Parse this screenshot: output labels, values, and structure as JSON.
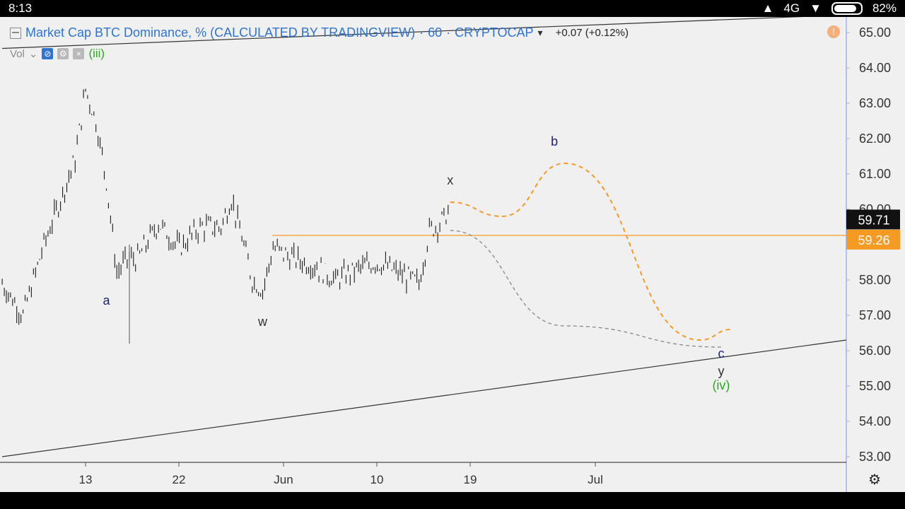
{
  "status_bar": {
    "time": "8:13",
    "network": "4G",
    "battery": "82%"
  },
  "legend": {
    "title": "Market Cap BTC Dominance, % (CALCULATED BY TRADINGVIEW)",
    "interval": "60",
    "source": "CRYPTOCAP",
    "change": "+0.07 (+0.12%)"
  },
  "indicator": {
    "volume_label": "Vol",
    "wave_label": "(iii)"
  },
  "icons": {
    "collapse": "collapse-icon",
    "visibility": "eye-icon",
    "settings": "gear-icon",
    "remove": "close-icon",
    "alert": "alert-icon",
    "chart_settings": "settings-icon"
  },
  "colors": {
    "accent": "#2f74d0",
    "projection_orange": "#f59a23",
    "price_label_bg": "#111111",
    "level_label_bg": "#f59a23",
    "wave_green": "#2eaa22"
  },
  "chart_data": {
    "type": "line",
    "symbol": "CRYPTOCAP",
    "ylim": [
      53.0,
      65.0
    ],
    "y_ticks": [
      "53.00",
      "54.00",
      "55.00",
      "56.00",
      "57.00",
      "58.00",
      "59.00",
      "60.00",
      "61.00",
      "62.00",
      "63.00",
      "64.00",
      "65.00"
    ],
    "x_ticks": [
      "13",
      "22",
      "Jun",
      "10",
      "19",
      "Jul"
    ],
    "grid": false,
    "series": [
      {
        "x": [
          "May 5",
          "May 7",
          "May 9",
          "May 11",
          "May 12",
          "May 13",
          "May 14",
          "May 15",
          "May 16",
          "May 17",
          "May 18",
          "May 20",
          "May 22",
          "May 24",
          "May 26",
          "May 27",
          "May 28",
          "May 29",
          "May 30",
          "May 31",
          "Jun 2",
          "Jun 4",
          "Jun 6",
          "Jun 8",
          "Jun 10",
          "Jun 12",
          "Jun 14",
          "Jun 15",
          "Jun 16",
          "Jun 17"
        ],
        "values": [
          57.9,
          57.0,
          59.0,
          60.6,
          61.4,
          63.4,
          62.5,
          60.8,
          58.2,
          58.6,
          58.6,
          59.6,
          58.9,
          59.5,
          59.5,
          60.3,
          59.2,
          58.0,
          57.7,
          58.9,
          58.6,
          58.4,
          58.0,
          58.3,
          58.5,
          58.2,
          57.9,
          59.4,
          59.6,
          60.0
        ]
      }
    ],
    "horizontal_levels": [
      {
        "value": 59.26,
        "label": "59.26"
      }
    ],
    "last_price": {
      "value": 59.71,
      "label": "59.71"
    },
    "trendlines": [
      {
        "from": [
          "May 5",
          64.55
        ],
        "to": [
          "Jul 14",
          65.5
        ]
      },
      {
        "from": [
          "May 5",
          53.0
        ],
        "to": [
          "Jul 14",
          56.3
        ]
      }
    ],
    "projections": [
      {
        "name": "orange",
        "points": [
          [
            "Jun 17",
            60.2
          ],
          [
            "Jun 22",
            59.8
          ],
          [
            "Jun 28",
            61.3
          ],
          [
            "Jul 11",
            56.3
          ],
          [
            "Jul 14",
            56.6
          ]
        ]
      },
      {
        "name": "grey",
        "points": [
          [
            "Jun 17",
            59.4
          ],
          [
            "Jun 28",
            56.7
          ],
          [
            "Jul 13",
            56.1
          ]
        ]
      }
    ],
    "annotations": [
      {
        "text": "a",
        "x": "May 15",
        "y": 57.3,
        "color": "#1a237e"
      },
      {
        "text": "w",
        "x": "May 30",
        "y": 56.7,
        "color": "#333333"
      },
      {
        "text": "x",
        "x": "Jun 17",
        "y": 60.7,
        "color": "#333333"
      },
      {
        "text": "b",
        "x": "Jun 27",
        "y": 61.8,
        "color": "#1a237e"
      },
      {
        "text": "c",
        "x": "Jul 13",
        "y": 55.8,
        "color": "#1a237e"
      },
      {
        "text": "y",
        "x": "Jul 13",
        "y": 55.3,
        "color": "#333333"
      },
      {
        "text": "(iv)",
        "x": "Jul 13",
        "y": 54.9,
        "color": "#2eaa22"
      }
    ]
  }
}
